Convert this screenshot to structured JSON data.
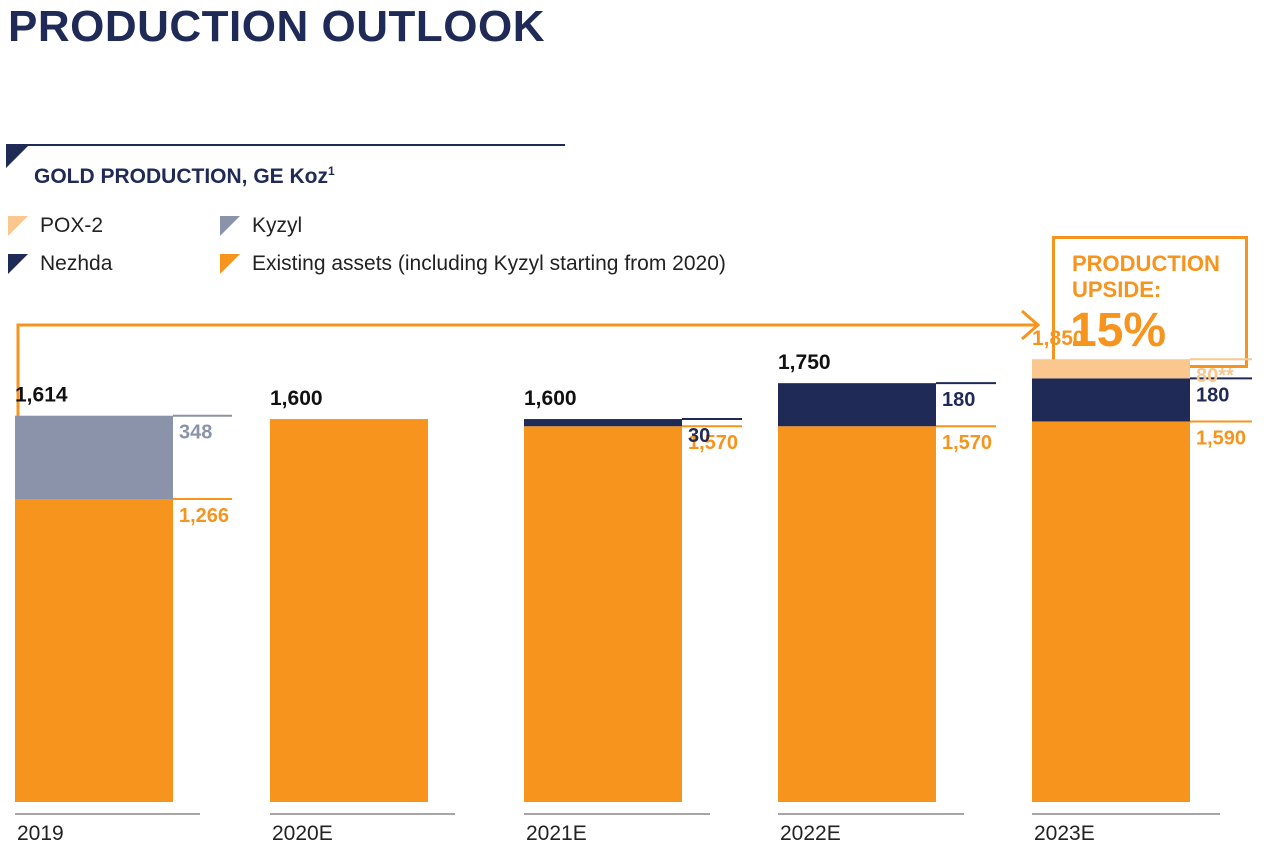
{
  "title": "PRODUCTION OUTLOOK",
  "section": {
    "title": "GOLD PRODUCTION, GE Koz",
    "footnote": "1"
  },
  "legend": [
    {
      "label": "POX-2",
      "color": "#fac88e"
    },
    {
      "label": "Kyzyl",
      "color": "#8b93ab"
    },
    {
      "label": "Nezhda",
      "color": "#1f2a56"
    },
    {
      "label": "Existing assets (including Kyzyl starting from 2020)",
      "color": "#f7941d"
    }
  ],
  "upside": {
    "label": "PRODUCTION UPSIDE:",
    "value": "15%"
  },
  "chart_data": {
    "type": "bar",
    "stacked": true,
    "title": "GOLD PRODUCTION, GE Koz",
    "categories": [
      "2019",
      "2020E",
      "2021E",
      "2022E",
      "2023E"
    ],
    "totals": [
      1614,
      1600,
      1600,
      1750,
      1850
    ],
    "total_labels": [
      "1,614",
      "1,600",
      "1,600",
      "1,750",
      "1,850"
    ],
    "series": [
      {
        "name": "Existing assets (including Kyzyl starting from 2020)",
        "color": "#f7941d",
        "values": [
          1266,
          1600,
          1570,
          1570,
          1590
        ],
        "labels": [
          "1,266",
          "",
          "1,570",
          "1,570",
          "1,590"
        ]
      },
      {
        "name": "Kyzyl",
        "color": "#8b93ab",
        "values": [
          348,
          0,
          0,
          0,
          0
        ],
        "labels": [
          "348",
          "",
          "",
          "",
          ""
        ]
      },
      {
        "name": "Nezhda",
        "color": "#1f2a56",
        "values": [
          0,
          0,
          30,
          180,
          180
        ],
        "labels": [
          "",
          "",
          "30",
          "180",
          "180"
        ]
      },
      {
        "name": "POX-2",
        "color": "#fac88e",
        "values": [
          0,
          0,
          0,
          0,
          80
        ],
        "labels": [
          "",
          "",
          "",
          "",
          "80**"
        ]
      }
    ],
    "ylim": [
      0,
      1850
    ],
    "xlabel": "",
    "ylabel": ""
  }
}
